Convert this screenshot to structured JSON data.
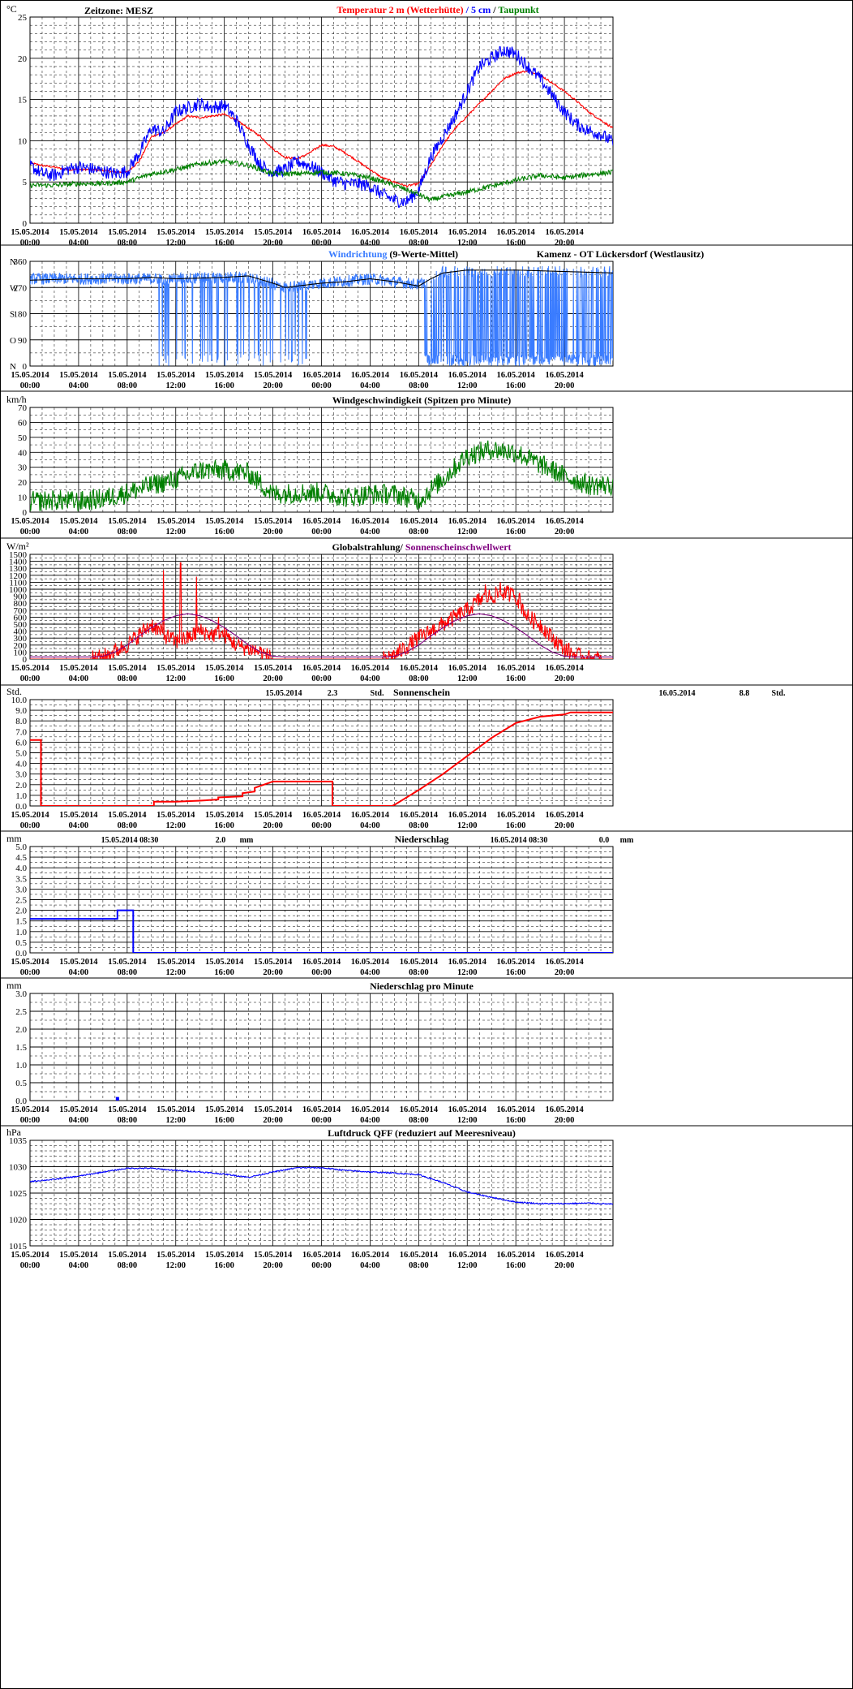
{
  "x_tick_labels": [
    [
      "15.05.2014",
      "00:00"
    ],
    [
      "15.05.2014",
      "04:00"
    ],
    [
      "15.05.2014",
      "08:00"
    ],
    [
      "15.05.2014",
      "12:00"
    ],
    [
      "15.05.2014",
      "16:00"
    ],
    [
      "15.05.2014",
      "20:00"
    ],
    [
      "16.05.2014",
      "00:00"
    ],
    [
      "16.05.2014",
      "04:00"
    ],
    [
      "16.05.2014",
      "08:00"
    ],
    [
      "16.05.2014",
      "12:00"
    ],
    [
      "16.05.2014",
      "16:00"
    ],
    [
      "16.05.2014",
      "20:00"
    ]
  ],
  "colors": {
    "red": "#ff0000",
    "blue": "#0000ff",
    "green": "#008000",
    "lightblue": "#3a7cff",
    "black": "#000000",
    "purple": "#800080",
    "grid": "#000000"
  },
  "chart_data": [
    {
      "id": "temperature",
      "type": "line",
      "unit": "°C",
      "header_left": "Zeitzone: MESZ",
      "title_parts": [
        {
          "text": "Temperatur 2 m (Wetterhütte)",
          "color": "#ff0000"
        },
        {
          "text": " / ",
          "color": "#0000ff"
        },
        {
          "text": "5 cm",
          "color": "#0000ff"
        },
        {
          "text": " / ",
          "color": "#000000"
        },
        {
          "text": "Taupunkt",
          "color": "#008000"
        }
      ],
      "ylim": [
        0,
        25
      ],
      "yticks": [
        0,
        5,
        10,
        15,
        20,
        25
      ],
      "y_tick_labels": [
        "0",
        "5",
        "10",
        "15",
        "20",
        "25"
      ],
      "x_hours": [
        0,
        48
      ],
      "series": [
        {
          "name": "Temperatur 2 m (Wetterhütte)",
          "color": "#ff0000",
          "noise": 0.12,
          "x": [
            0,
            1,
            2,
            3,
            4,
            5,
            6,
            7,
            8,
            9,
            10,
            11,
            12,
            13,
            14,
            15,
            16,
            17,
            18,
            19,
            20,
            21,
            22,
            23,
            24,
            25,
            26,
            27,
            28,
            29,
            30,
            31,
            32,
            33,
            34,
            35,
            36,
            37,
            38,
            39,
            40,
            41,
            42,
            43,
            44,
            45,
            46,
            47,
            48
          ],
          "y": [
            7.3,
            7.0,
            6.8,
            6.5,
            6.5,
            6.5,
            6.4,
            6.2,
            6.2,
            7.5,
            10.5,
            11.0,
            12.0,
            13.0,
            12.8,
            13.0,
            13.2,
            12.5,
            11.5,
            10.5,
            9.0,
            8.0,
            7.8,
            8.5,
            9.5,
            9.3,
            8.5,
            7.5,
            6.5,
            5.5,
            5.0,
            4.5,
            4.8,
            7.0,
            9.5,
            11.5,
            13.0,
            14.5,
            16.0,
            17.5,
            18.2,
            18.5,
            18.0,
            17.0,
            16.0,
            14.8,
            13.5,
            12.5,
            11.5
          ]
        },
        {
          "name": "5 cm",
          "color": "#0000ff",
          "noise": 0.8,
          "x": [
            0,
            1,
            2,
            3,
            4,
            5,
            6,
            7,
            8,
            9,
            10,
            11,
            12,
            13,
            14,
            15,
            16,
            17,
            18,
            19,
            20,
            21,
            22,
            23,
            24,
            25,
            26,
            27,
            28,
            29,
            30,
            31,
            32,
            33,
            34,
            35,
            36,
            37,
            38,
            39,
            40,
            41,
            42,
            43,
            44,
            45,
            46,
            47,
            48
          ],
          "y": [
            7.0,
            6.0,
            5.8,
            6.5,
            6.8,
            6.6,
            6.3,
            6.0,
            6.3,
            8.5,
            11.5,
            11.0,
            13.5,
            14.0,
            14.5,
            14.0,
            14.3,
            12.5,
            9.5,
            7.0,
            6.2,
            6.5,
            7.5,
            7.0,
            6.2,
            5.2,
            4.8,
            4.8,
            4.5,
            3.5,
            2.8,
            2.6,
            4.0,
            8.0,
            10.5,
            13.0,
            16.0,
            19.0,
            20.0,
            21.0,
            20.5,
            19.0,
            17.5,
            15.5,
            13.5,
            12.0,
            11.2,
            10.8,
            9.8
          ]
        },
        {
          "name": "Taupunkt",
          "color": "#008000",
          "noise": 0.3,
          "x": [
            0,
            2,
            4,
            6,
            8,
            10,
            12,
            14,
            16,
            18,
            20,
            22,
            24,
            26,
            28,
            30,
            32,
            33,
            34,
            36,
            38,
            40,
            42,
            44,
            46,
            48
          ],
          "y": [
            4.6,
            4.6,
            4.8,
            4.8,
            5.0,
            6.0,
            6.5,
            7.2,
            7.5,
            7.0,
            6.0,
            6.0,
            6.2,
            6.0,
            5.5,
            4.6,
            3.5,
            2.8,
            3.2,
            3.8,
            4.5,
            5.2,
            5.8,
            5.5,
            5.9,
            6.2
          ]
        }
      ]
    },
    {
      "id": "wind_direction",
      "type": "line",
      "title_parts": [
        {
          "text": "Windrichtung",
          "color": "#3a7cff"
        },
        {
          "text": " (9-Werte-Mittel)",
          "color": "#000000"
        }
      ],
      "title_right": "Kamenz - OT Lückersdorf (Westlausitz)",
      "ylim": [
        0,
        360
      ],
      "yticks": [
        0,
        90,
        180,
        270,
        360
      ],
      "y_tick_labels": [
        "0",
        "90",
        "180",
        "270",
        "360"
      ],
      "compass_labels": [
        "N",
        "O",
        "S",
        "W",
        "N"
      ],
      "compass_values": [
        0,
        90,
        180,
        270,
        360
      ],
      "x_hours": [
        0,
        48
      ],
      "series": [
        {
          "name": "Windrichtung",
          "color": "#3a7cff",
          "base": {
            "x": [
              0,
              10,
              18,
              21,
              24,
              28,
              32,
              34,
              48
            ],
            "y": [
              300,
              300,
              305,
              270,
              285,
              300,
              280,
              325,
              325
            ]
          },
          "spike_ranges": [
            [
              10.5,
              23.0,
              0.15
            ],
            [
              32.5,
              48.0,
              0.6
            ]
          ]
        },
        {
          "name": "9-Werte-Mittel",
          "color": "#000000",
          "x": [
            0,
            4,
            8,
            10,
            12,
            16,
            18,
            20,
            21,
            22,
            24,
            26,
            28,
            30,
            32,
            33,
            34,
            36,
            40,
            44,
            48
          ],
          "y": [
            295,
            300,
            300,
            305,
            300,
            305,
            310,
            285,
            270,
            275,
            285,
            290,
            300,
            290,
            275,
            300,
            320,
            330,
            330,
            325,
            320
          ]
        }
      ]
    },
    {
      "id": "wind_speed",
      "type": "line",
      "unit": "km/h",
      "title": "Windgeschwindigkeit (Spitzen pro Minute)",
      "ylim": [
        0,
        70
      ],
      "yticks": [
        0,
        10,
        20,
        30,
        40,
        50,
        60,
        70
      ],
      "y_tick_labels": [
        "0",
        "10",
        "20",
        "30",
        "40",
        "50",
        "60",
        "70"
      ],
      "x_hours": [
        0,
        48
      ],
      "series": [
        {
          "name": "Windgeschwindigkeit",
          "color": "#008000",
          "noise": 7,
          "x": [
            0,
            2,
            4,
            6,
            8,
            10,
            12,
            14,
            16,
            18,
            20,
            22,
            24,
            26,
            28,
            30,
            32,
            34,
            36,
            38,
            40,
            42,
            44,
            46,
            48
          ],
          "y": [
            7,
            8,
            7,
            9,
            13,
            18,
            22,
            28,
            28,
            26,
            12,
            13,
            13,
            10,
            12,
            12,
            8,
            22,
            38,
            42,
            40,
            32,
            24,
            18,
            18
          ]
        }
      ]
    },
    {
      "id": "radiation",
      "type": "line",
      "unit": "W/m²",
      "title_parts": [
        {
          "text": "Globalstrahlung/ ",
          "color": "#000000"
        },
        {
          "text": "Sonnenscheinschwellwert",
          "color": "#800080"
        }
      ],
      "ylim": [
        0,
        1500
      ],
      "yticks": [
        0,
        100,
        200,
        300,
        400,
        500,
        600,
        700,
        800,
        900,
        1000,
        1100,
        1200,
        1300,
        1400,
        1500
      ],
      "y_tick_labels": [
        "0",
        "100",
        "200",
        "300",
        "400",
        "500",
        "600",
        "700",
        "800",
        "900",
        "1000",
        "1100",
        "1200",
        "1300",
        "1400",
        "1500"
      ],
      "x_hours": [
        0,
        48
      ],
      "series": [
        {
          "name": "Globalstrahlung",
          "color": "#ff0000",
          "noise": 120,
          "x": [
            0,
            5,
            6,
            8,
            10,
            11,
            12,
            13,
            14,
            15,
            16,
            17,
            18,
            19,
            20,
            29,
            30,
            32,
            34,
            36,
            37,
            38,
            39,
            40,
            41,
            42,
            43,
            44,
            45,
            46,
            48
          ],
          "y": [
            0,
            0,
            30,
            200,
            500,
            350,
            250,
            300,
            400,
            350,
            350,
            200,
            150,
            100,
            0,
            0,
            50,
            300,
            500,
            700,
            850,
            900,
            950,
            900,
            600,
            500,
            300,
            150,
            50,
            10,
            0
          ],
          "spikes": [
            [
              11.0,
              1270
            ],
            [
              12.4,
              1380
            ],
            [
              13.7,
              1180
            ],
            [
              15.5,
              600
            ],
            [
              37.5,
              1070
            ],
            [
              38.7,
              1100
            ],
            [
              39.8,
              1000
            ],
            [
              40.3,
              950
            ]
          ]
        },
        {
          "name": "Sonnenscheinschwellwert",
          "color": "#800080",
          "x": [
            0,
            5,
            6,
            7,
            8,
            9,
            10,
            11,
            12,
            13,
            14,
            15,
            16,
            17,
            18,
            19,
            20,
            21,
            29,
            30,
            31,
            32,
            33,
            34,
            35,
            36,
            37,
            38,
            39,
            40,
            41,
            42,
            43,
            44,
            45,
            46,
            48
          ],
          "y": [
            30,
            30,
            40,
            100,
            200,
            330,
            450,
            550,
            620,
            650,
            620,
            550,
            450,
            330,
            200,
            100,
            40,
            30,
            30,
            40,
            100,
            200,
            330,
            450,
            550,
            620,
            650,
            620,
            550,
            450,
            330,
            200,
            100,
            40,
            30,
            30,
            30
          ]
        }
      ]
    },
    {
      "id": "sunshine",
      "type": "line",
      "unit": "Std.",
      "title": "Sonnenschein",
      "annotations": [
        {
          "date": "15.05.2014",
          "value": "2.3",
          "unit": "Std."
        },
        {
          "date": "16.05.2014",
          "value": "8.8",
          "unit": "Std."
        }
      ],
      "ylim": [
        0,
        10
      ],
      "yticks": [
        0,
        1,
        2,
        3,
        4,
        5,
        6,
        7,
        8,
        9,
        10
      ],
      "y_tick_labels": [
        "0.0",
        "1.0",
        "2.0",
        "3.0",
        "4.0",
        "5.0",
        "6.0",
        "7.0",
        "8.0",
        "9.0",
        "10.0"
      ],
      "x_hours": [
        0,
        48
      ],
      "series": [
        {
          "name": "Sonnenschein",
          "color": "#ff0000",
          "x": [
            0,
            0.9,
            0.9,
            10.2,
            10.2,
            12,
            14,
            15.5,
            15.5,
            17.5,
            17.5,
            18.5,
            18.5,
            20,
            20.4,
            24.9,
            24.9,
            29.8,
            30,
            32,
            34,
            36,
            38,
            40,
            42,
            44,
            44.5,
            48
          ],
          "y": [
            6.2,
            6.2,
            0,
            0,
            0.4,
            0.4,
            0.5,
            0.6,
            0.8,
            0.9,
            1.2,
            1.35,
            1.7,
            2.3,
            2.3,
            2.3,
            0,
            0,
            0.1,
            1.5,
            3.0,
            4.7,
            6.4,
            7.8,
            8.4,
            8.6,
            8.8,
            8.8
          ]
        }
      ]
    },
    {
      "id": "precipitation",
      "type": "line",
      "unit": "mm",
      "title": "Niederschlag",
      "annotations": [
        {
          "date": "15.05.2014 08:30",
          "value": "2.0",
          "unit": "mm"
        },
        {
          "date": "16.05.2014 08:30",
          "value": "0.0",
          "unit": "mm"
        }
      ],
      "ylim": [
        0,
        5
      ],
      "yticks": [
        0,
        0.5,
        1,
        1.5,
        2,
        2.5,
        3,
        3.5,
        4,
        4.5,
        5
      ],
      "y_tick_labels": [
        "0.0",
        "0.5",
        "1.0",
        "1.5",
        "2.0",
        "2.5",
        "3.0",
        "3.5",
        "4.0",
        "4.5",
        "5.0"
      ],
      "x_hours": [
        0,
        48
      ],
      "series": [
        {
          "name": "Niederschlag",
          "color": "#0000ff",
          "x": [
            0,
            7.2,
            7.2,
            8.5,
            8.5,
            48
          ],
          "y": [
            1.6,
            1.6,
            2.0,
            2.0,
            0,
            0
          ]
        }
      ]
    },
    {
      "id": "precipitation_per_minute",
      "type": "bar",
      "unit": "mm",
      "title": "Niederschlag pro Minute",
      "ylim": [
        0,
        3
      ],
      "yticks": [
        0,
        0.5,
        1,
        1.5,
        2,
        2.5,
        3
      ],
      "y_tick_labels": [
        "0.0",
        "0.5",
        "1.0",
        "1.5",
        "2.0",
        "2.5",
        "3.0"
      ],
      "x_hours": [
        0,
        48
      ],
      "series": [
        {
          "name": "Niederschlag pro Minute",
          "color": "#0000ff",
          "x": [
            7.2
          ],
          "y": [
            0.1
          ]
        }
      ]
    },
    {
      "id": "pressure",
      "type": "line",
      "unit": "hPa",
      "title": "Luftdruck QFF (reduziert auf Meeresniveau)",
      "ylim": [
        1015,
        1035
      ],
      "yticks": [
        1015,
        1020,
        1025,
        1030,
        1035
      ],
      "y_tick_labels": [
        "1015",
        "1020",
        "1025",
        "1030",
        "1035"
      ],
      "x_hours": [
        0,
        48
      ],
      "series": [
        {
          "name": "Luftdruck",
          "color": "#0000ff",
          "noise": 0.12,
          "x": [
            0,
            2,
            4,
            6,
            8,
            10,
            12,
            14,
            16,
            18,
            20,
            22,
            24,
            26,
            28,
            30,
            32,
            34,
            36,
            38,
            40,
            42,
            44,
            46,
            48
          ],
          "y": [
            1027.2,
            1027.6,
            1028.2,
            1029.0,
            1029.7,
            1029.7,
            1029.3,
            1029.0,
            1028.6,
            1028.0,
            1029.0,
            1029.8,
            1029.8,
            1029.3,
            1029.0,
            1028.8,
            1028.5,
            1027.0,
            1025.2,
            1024.2,
            1023.3,
            1023.0,
            1023.0,
            1023.1,
            1022.9
          ]
        }
      ]
    }
  ]
}
